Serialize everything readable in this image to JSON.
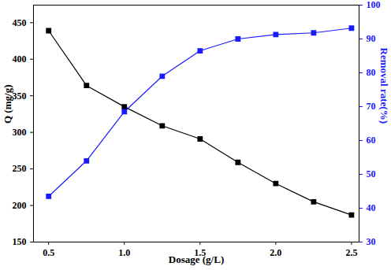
{
  "chart_data": {
    "type": "line",
    "x_label": "Dosage (g/L)",
    "x": [
      0.5,
      0.75,
      1.0,
      1.25,
      1.5,
      1.75,
      2.0,
      2.25,
      2.5
    ],
    "xlim": [
      0.4,
      2.55
    ],
    "xticks": [
      0.5,
      {
        "value": 1,
        "label": "1.0"
      },
      1.5,
      {
        "value": 2,
        "label": "2.0"
      },
      2.5
    ],
    "ylim": [
      150,
      474
    ],
    "yticks": [
      150,
      200,
      250,
      300,
      350,
      400,
      450
    ],
    "y2lim": [
      30,
      100
    ],
    "y2ticks": [
      30,
      40,
      50,
      60,
      70,
      80,
      90,
      100
    ],
    "series": [
      {
        "name": "Q (mg/g)",
        "color": "#000000",
        "marker": "square",
        "line_style": "solid",
        "values": [
          439,
          364,
          335,
          309,
          291,
          259,
          230,
          205,
          187
        ]
      },
      {
        "name": "Removal rate(%)",
        "color": "#1a1aff",
        "marker": "square",
        "line_style": "solid",
        "axis": "y2",
        "values": [
          43.5,
          54,
          68.5,
          79,
          86.5,
          90,
          91.3,
          91.8,
          93.2
        ]
      }
    ]
  }
}
